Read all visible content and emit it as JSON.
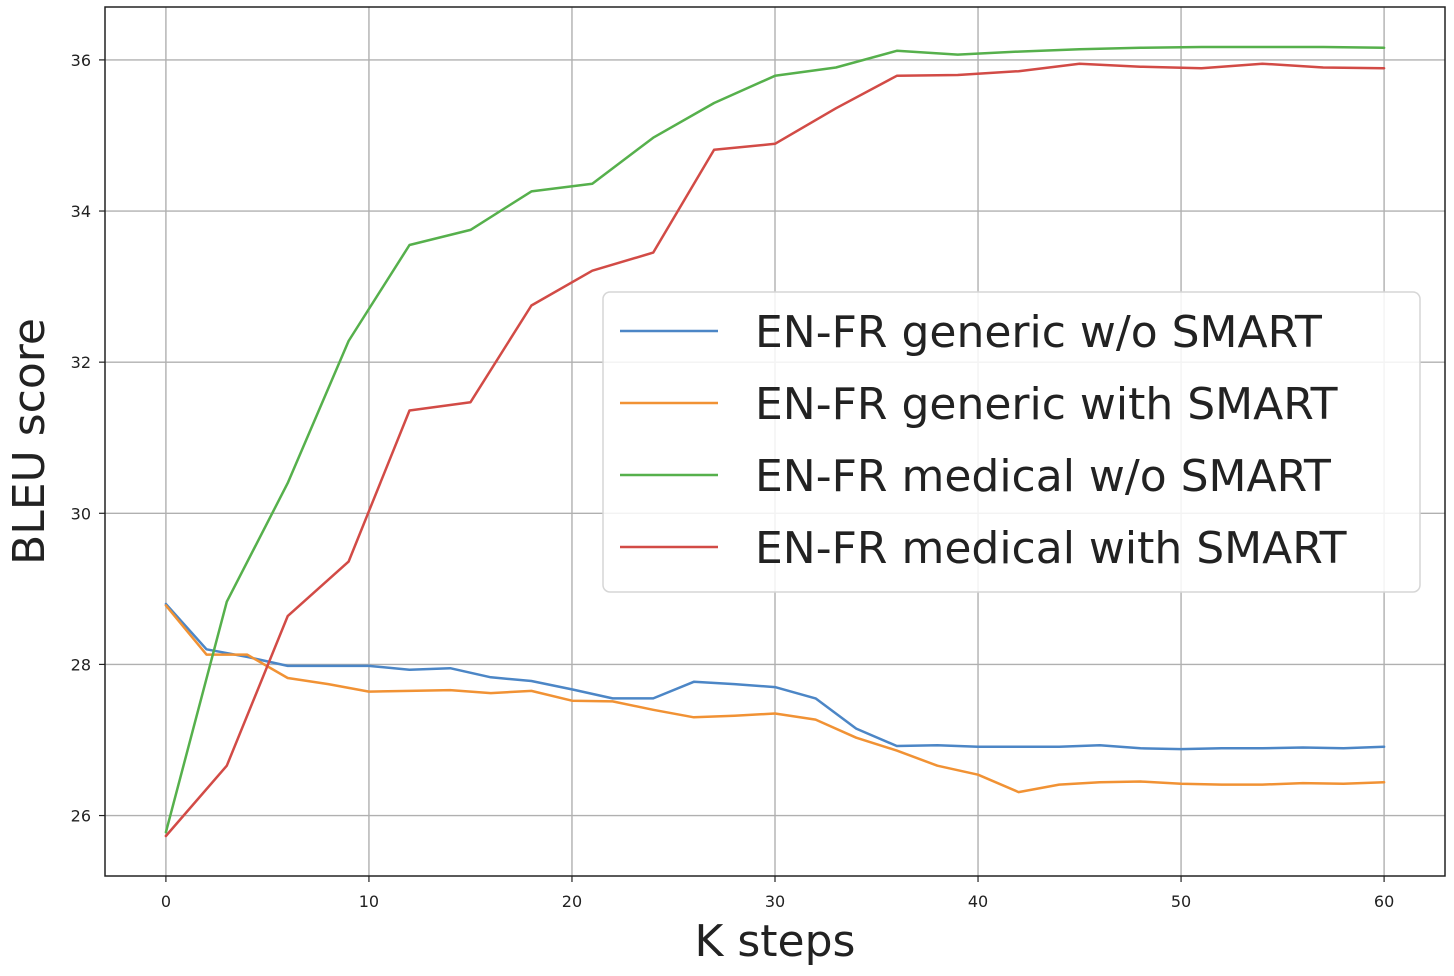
{
  "chart_data": {
    "type": "line",
    "xlabel": "K steps",
    "ylabel": "BLEU score",
    "xlim": [
      -3,
      63
    ],
    "ylim": [
      25.2,
      36.7
    ],
    "xticks": [
      0,
      10,
      20,
      30,
      40,
      50,
      60
    ],
    "yticks": [
      26,
      28,
      30,
      32,
      34,
      36
    ],
    "grid": true,
    "legend_position": "center-right",
    "series": [
      {
        "name": "EN-FR generic w/o SMART",
        "color": "#4c86c6",
        "x": [
          0,
          2,
          4,
          6,
          8,
          10,
          12,
          14,
          16,
          18,
          20,
          22,
          24,
          26,
          28,
          30,
          32,
          34,
          36,
          38,
          40,
          42,
          44,
          46,
          48,
          50,
          52,
          54,
          56,
          58,
          60
        ],
        "y": [
          28.8,
          28.2,
          28.1,
          27.98,
          27.98,
          27.98,
          27.93,
          27.95,
          27.83,
          27.78,
          27.67,
          27.55,
          27.55,
          27.77,
          27.74,
          27.7,
          27.55,
          27.15,
          26.92,
          26.93,
          26.91,
          26.91,
          26.91,
          26.93,
          26.89,
          26.88,
          26.89,
          26.89,
          26.9,
          26.89,
          26.91
        ]
      },
      {
        "name": "EN-FR generic with SMART",
        "color": "#f19234",
        "x": [
          0,
          2,
          4,
          6,
          8,
          10,
          12,
          14,
          16,
          18,
          20,
          22,
          24,
          26,
          28,
          30,
          32,
          34,
          36,
          38,
          40,
          42,
          44,
          46,
          48,
          50,
          52,
          54,
          56,
          58,
          60
        ],
        "y": [
          28.78,
          28.13,
          28.13,
          27.82,
          27.74,
          27.64,
          27.65,
          27.66,
          27.62,
          27.65,
          27.52,
          27.51,
          27.4,
          27.3,
          27.32,
          27.35,
          27.27,
          27.03,
          26.86,
          26.66,
          26.54,
          26.31,
          26.41,
          26.44,
          26.45,
          26.42,
          26.41,
          26.41,
          26.43,
          26.42,
          26.44
        ]
      },
      {
        "name": "EN-FR medical w/o SMART",
        "color": "#56b04c",
        "x": [
          0,
          3,
          6,
          9,
          12,
          15,
          18,
          21,
          24,
          27,
          30,
          33,
          36,
          39,
          42,
          45,
          48,
          51,
          54,
          57,
          60
        ],
        "y": [
          25.78,
          28.83,
          30.4,
          32.28,
          33.55,
          33.75,
          34.26,
          34.36,
          34.97,
          35.43,
          35.79,
          35.9,
          36.12,
          36.07,
          36.11,
          36.14,
          36.16,
          36.17,
          36.17,
          36.17,
          36.16
        ]
      },
      {
        "name": "EN-FR medical with SMART",
        "color": "#d24b46",
        "x": [
          0,
          3,
          6,
          9,
          12,
          15,
          18,
          21,
          24,
          27,
          30,
          33,
          36,
          39,
          42,
          45,
          48,
          51,
          54,
          57,
          60
        ],
        "y": [
          25.73,
          26.66,
          28.64,
          29.36,
          31.36,
          31.47,
          32.75,
          33.21,
          33.45,
          34.81,
          34.89,
          35.36,
          35.79,
          35.8,
          35.85,
          35.95,
          35.91,
          35.89,
          35.95,
          35.9,
          35.89
        ]
      }
    ]
  }
}
